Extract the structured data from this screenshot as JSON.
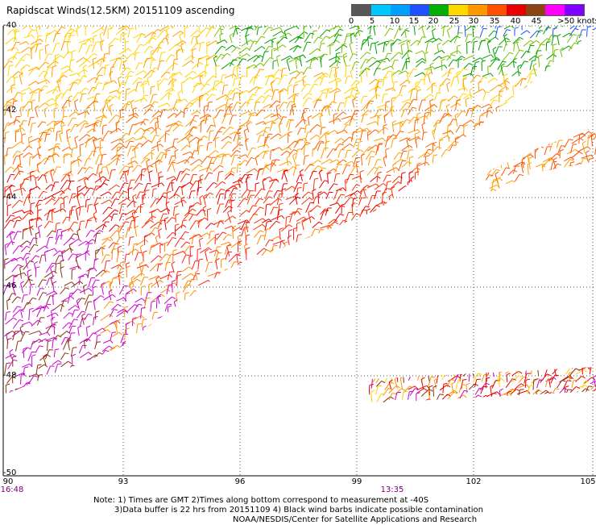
{
  "title": "Rapidscat Winds(12.5KM) 20151109 ascending",
  "legend": {
    "labels": [
      "0",
      "5",
      "10",
      "15",
      "20",
      "25",
      "30",
      "35",
      "40",
      "45",
      ">50 knots"
    ],
    "colors": [
      "#585858",
      "#00c8ff",
      "#00a0ff",
      "#2050ff",
      "#00b000",
      "#ffd800",
      "#ff9800",
      "#ff5000",
      "#e80000",
      "#8b4513",
      "#ff00ff",
      "#8000ff"
    ]
  },
  "latitude_labels": [
    "-40",
    "-42",
    "-44",
    "-46",
    "-48",
    "-50"
  ],
  "longitude_labels": [
    "90",
    "93",
    "96",
    "99",
    "102",
    "105"
  ],
  "time_labels": [
    "16:48",
    "13:35"
  ],
  "notes": {
    "line1": "Note: 1) Times are GMT 2)Times along bottom correspond to measurement at -40S",
    "line2": "3)Data buffer is 22 hrs from 20151109 4) Black wind barbs indicate possible contamination",
    "line3": "NOAA/NESDIS/Center for Satellite Applications and Research"
  },
  "map": {
    "lon_range": [
      90,
      105
    ],
    "lat_range": [
      -50,
      -40
    ],
    "grid": "dotted",
    "swaths": [
      "main swath from 90E,-40 to 105E,-40 with southeast edge diagonal toward 93E,-48",
      "small patch near 102-105E, -42.5 to -44",
      "strip along -48.5 from 100 to 105E"
    ]
  }
}
